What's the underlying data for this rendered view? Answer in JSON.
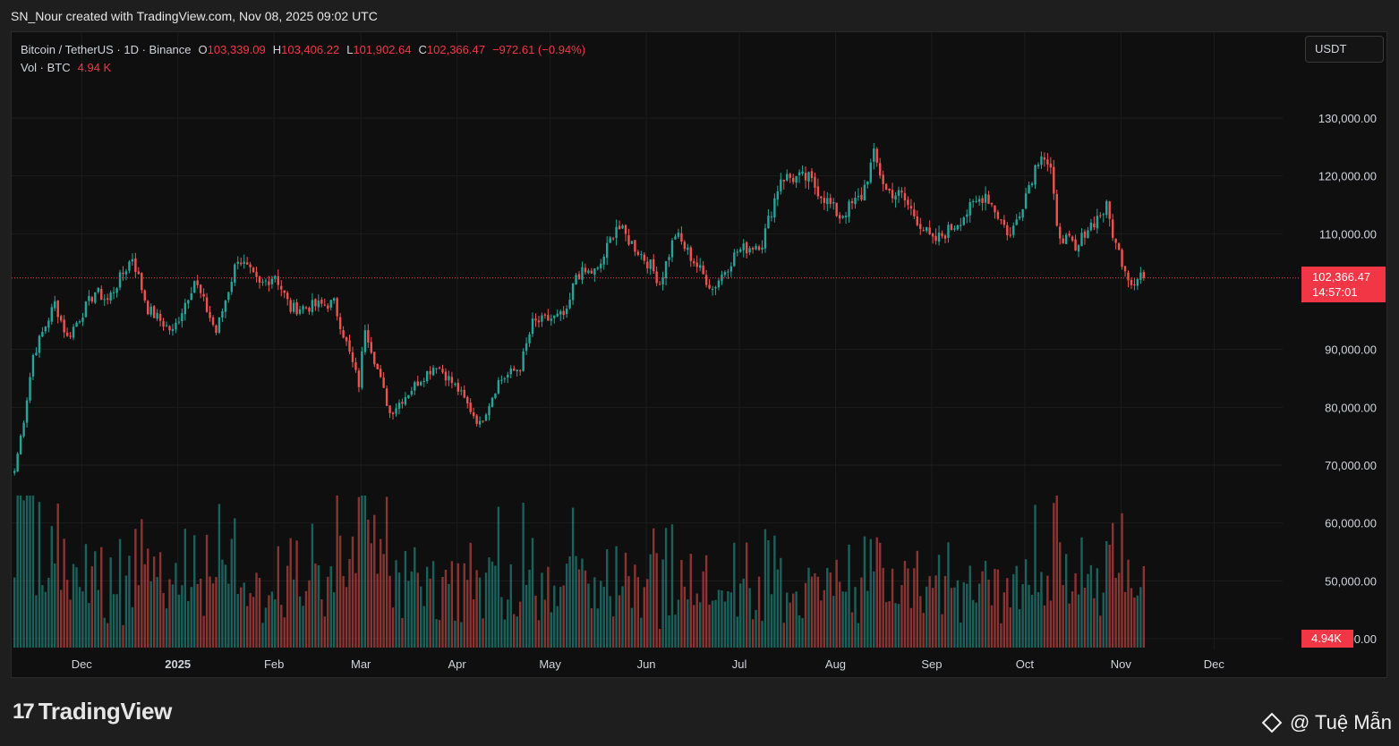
{
  "header": {
    "credit": "SN_Nour created with TradingView.com, Nov 08, 2025 09:02 UTC"
  },
  "legend": {
    "symbol": "Bitcoin / TetherUS · 1D · Binance",
    "open_label": "O",
    "open": "103,339.09",
    "high_label": "H",
    "high": "103,406.22",
    "low_label": "L",
    "low": "101,902.64",
    "close_label": "C",
    "close": "102,366.47",
    "change": "−972.61 (−0.94%)",
    "vol_label": "Vol · BTC",
    "vol_value": "4.94 K"
  },
  "currency_button": "USDT",
  "price_tag": {
    "price": "102,366.47",
    "countdown": "14:57:01"
  },
  "volume_tag": "4.94K",
  "footer": {
    "logo_mark": "17",
    "logo_text": "TradingView",
    "watermark": "@ Tuệ Mẫn"
  },
  "colors": {
    "up": "#26a69a",
    "down": "#ef5350",
    "price_line": "#f23645",
    "grid": "#1c1c1c",
    "axis_text": "#d1d4dc"
  },
  "chart_data": {
    "type": "candlestick",
    "title": "Bitcoin / TetherUS · 1D · Binance",
    "y_axis": {
      "ticks": [
        "130,000.00",
        "120,000.00",
        "110,000.00",
        "90,000.00",
        "80,000.00",
        "70,000.00",
        "60,000.00",
        "50,000.00",
        "40,000.00"
      ],
      "ylim": [
        34000,
        147000
      ]
    },
    "x_axis": {
      "ticks": [
        "Dec",
        "2025",
        "Feb",
        "Mar",
        "Apr",
        "May",
        "Jun",
        "Jul",
        "Aug",
        "Sep",
        "Oct",
        "Nov",
        "Dec"
      ]
    },
    "last_price": 102366.47,
    "grid": true,
    "close_anchors": [
      {
        "date": "2024-11-09",
        "close": 69000
      },
      {
        "date": "2024-11-12",
        "close": 78000
      },
      {
        "date": "2024-11-15",
        "close": 89000
      },
      {
        "date": "2024-11-22",
        "close": 98000
      },
      {
        "date": "2024-11-26",
        "close": 92000
      },
      {
        "date": "2024-12-05",
        "close": 100000
      },
      {
        "date": "2024-12-09",
        "close": 98500
      },
      {
        "date": "2024-12-17",
        "close": 106000
      },
      {
        "date": "2024-12-22",
        "close": 97000
      },
      {
        "date": "2024-12-30",
        "close": 93000
      },
      {
        "date": "2025-01-06",
        "close": 102000
      },
      {
        "date": "2025-01-13",
        "close": 93000
      },
      {
        "date": "2025-01-20",
        "close": 106000
      },
      {
        "date": "2025-01-27",
        "close": 101000
      },
      {
        "date": "2025-02-01",
        "close": 103000
      },
      {
        "date": "2025-02-06",
        "close": 97000
      },
      {
        "date": "2025-02-20",
        "close": 98000
      },
      {
        "date": "2025-02-28",
        "close": 84000
      },
      {
        "date": "2025-03-02",
        "close": 94000
      },
      {
        "date": "2025-03-10",
        "close": 79000
      },
      {
        "date": "2025-03-20",
        "close": 85000
      },
      {
        "date": "2025-03-25",
        "close": 87500
      },
      {
        "date": "2025-04-01",
        "close": 83000
      },
      {
        "date": "2025-04-08",
        "close": 77000
      },
      {
        "date": "2025-04-14",
        "close": 84500
      },
      {
        "date": "2025-04-21",
        "close": 87000
      },
      {
        "date": "2025-04-25",
        "close": 94500
      },
      {
        "date": "2025-05-06",
        "close": 96000
      },
      {
        "date": "2025-05-09",
        "close": 103000
      },
      {
        "date": "2025-05-16",
        "close": 103500
      },
      {
        "date": "2025-05-22",
        "close": 111500
      },
      {
        "date": "2025-06-02",
        "close": 104500
      },
      {
        "date": "2025-06-05",
        "close": 101500
      },
      {
        "date": "2025-06-10",
        "close": 110000
      },
      {
        "date": "2025-06-22",
        "close": 100500
      },
      {
        "date": "2025-06-30",
        "close": 107000
      },
      {
        "date": "2025-07-08",
        "close": 108500
      },
      {
        "date": "2025-07-14",
        "close": 119800
      },
      {
        "date": "2025-07-23",
        "close": 119500
      },
      {
        "date": "2025-08-02",
        "close": 113000
      },
      {
        "date": "2025-08-09",
        "close": 116500
      },
      {
        "date": "2025-08-13",
        "close": 123500
      },
      {
        "date": "2025-08-17",
        "close": 117500
      },
      {
        "date": "2025-08-22",
        "close": 116500
      },
      {
        "date": "2025-09-01",
        "close": 108500
      },
      {
        "date": "2025-09-07",
        "close": 111000
      },
      {
        "date": "2025-09-18",
        "close": 117000
      },
      {
        "date": "2025-09-26",
        "close": 109500
      },
      {
        "date": "2025-10-02",
        "close": 118500
      },
      {
        "date": "2025-10-06",
        "close": 124500
      },
      {
        "date": "2025-10-09",
        "close": 121000
      },
      {
        "date": "2025-10-11",
        "close": 110500
      },
      {
        "date": "2025-10-16",
        "close": 108000
      },
      {
        "date": "2025-10-17",
        "close": 106500
      },
      {
        "date": "2025-10-20",
        "close": 110500
      },
      {
        "date": "2025-10-27",
        "close": 114500
      },
      {
        "date": "2025-10-30",
        "close": 108000
      },
      {
        "date": "2025-11-04",
        "close": 101500
      },
      {
        "date": "2025-11-07",
        "close": 103300
      },
      {
        "date": "2025-11-08",
        "close": 102366
      }
    ]
  }
}
